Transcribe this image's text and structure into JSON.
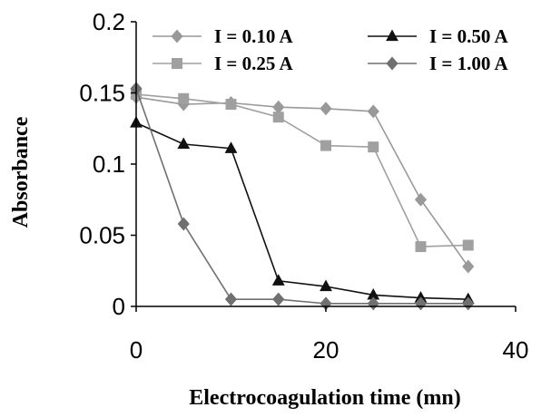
{
  "chart_data": {
    "type": "line",
    "xlabel": "Electrocoagulation time (mn)",
    "ylabel": "Absorbance",
    "xlim": [
      0,
      40
    ],
    "ylim": [
      0,
      0.2
    ],
    "xticks": [
      0,
      20,
      40
    ],
    "xtick_labels": [
      "0",
      "20",
      "40"
    ],
    "yticks": [
      0,
      0.05,
      0.1,
      0.15,
      0.2
    ],
    "ytick_labels": [
      "0",
      "0.05",
      "0.1",
      "0.15",
      "0.2"
    ],
    "grid": false,
    "legend_position": "top",
    "series": [
      {
        "name": "I = 0.10 A",
        "marker": "diamond",
        "color": "#999999",
        "x": [
          0,
          5,
          10,
          15,
          20,
          25,
          30,
          35
        ],
        "y": [
          0.147,
          0.142,
          0.143,
          0.14,
          0.139,
          0.137,
          0.075,
          0.028
        ]
      },
      {
        "name": "I = 0.25 A",
        "marker": "square",
        "color": "#a0a0a0",
        "x": [
          0,
          5,
          10,
          15,
          20,
          25,
          30,
          35
        ],
        "y": [
          0.149,
          0.146,
          0.142,
          0.133,
          0.113,
          0.112,
          0.042,
          0.043
        ]
      },
      {
        "name": "I = 0.50 A",
        "marker": "triangle",
        "color": "#111111",
        "x": [
          0,
          5,
          10,
          15,
          20,
          25,
          30,
          35
        ],
        "y": [
          0.129,
          0.114,
          0.111,
          0.018,
          0.014,
          0.008,
          0.006,
          0.005
        ]
      },
      {
        "name": "I = 1.00 A",
        "marker": "diamond",
        "color": "#707070",
        "x": [
          0,
          5,
          10,
          15,
          20,
          25,
          30,
          35
        ],
        "y": [
          0.153,
          0.058,
          0.005,
          0.005,
          0.002,
          0.002,
          0.002,
          0.002
        ]
      }
    ]
  }
}
